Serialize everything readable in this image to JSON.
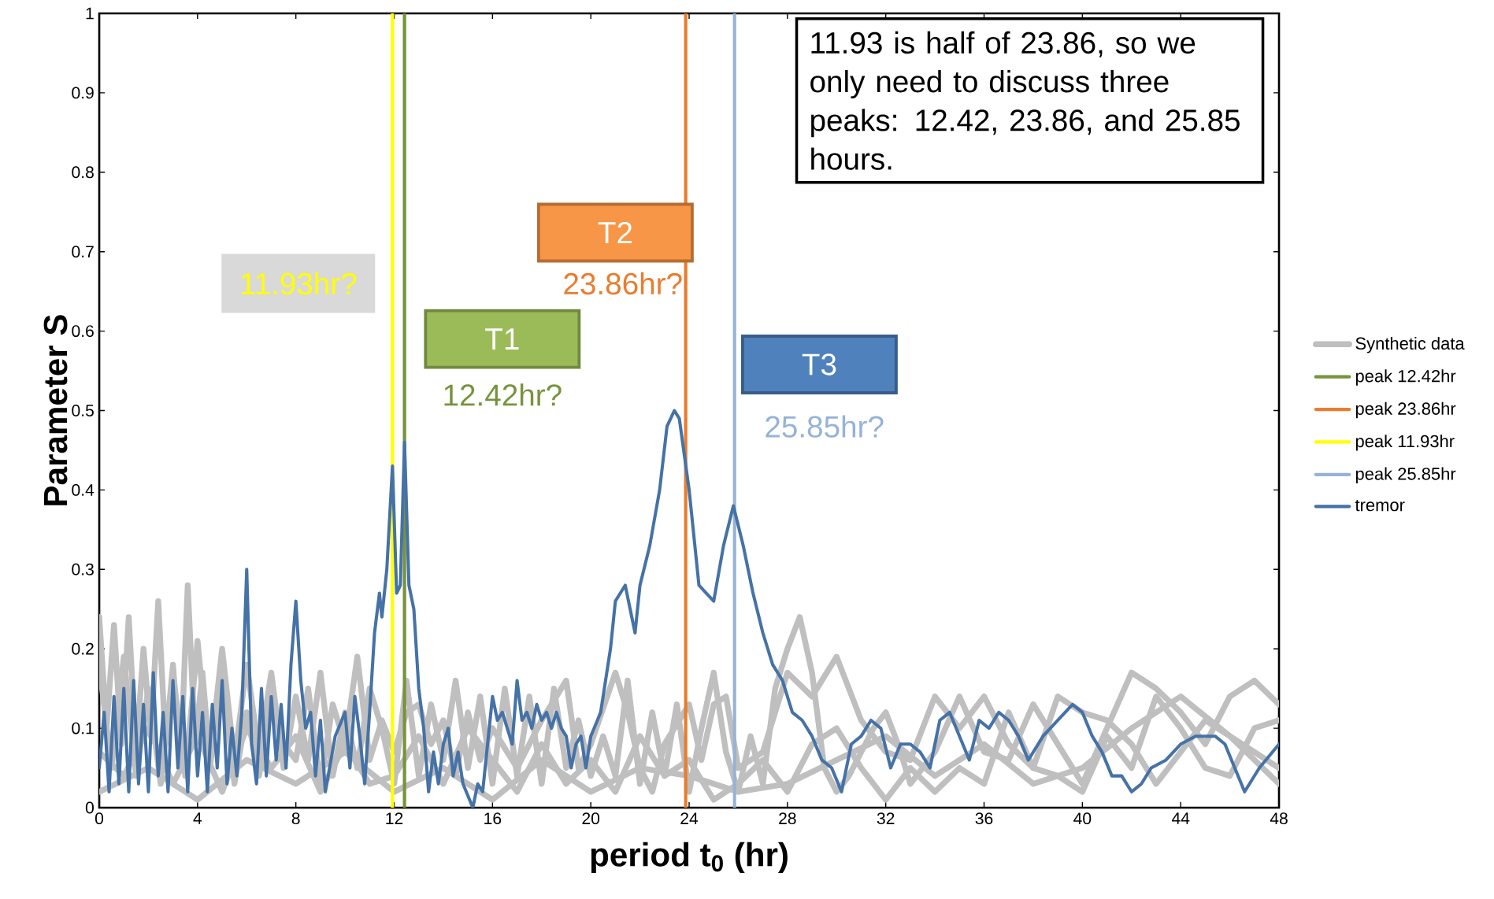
{
  "chart_data": {
    "type": "line",
    "xlabel": "period t$_{0}$ (hr)",
    "ylabel": "Parameter S",
    "xlim": [
      0,
      48
    ],
    "xticks": [
      0,
      4,
      8,
      12,
      16,
      20,
      24,
      28,
      32,
      36,
      40,
      44,
      48
    ],
    "ylim": [
      0,
      1
    ],
    "yticks": [
      0,
      0.1,
      0.2,
      0.3,
      0.4,
      0.5,
      0.6,
      0.7,
      0.8,
      0.9,
      1
    ],
    "legend": "right",
    "marker": "none",
    "line_style": "solid",
    "series": [
      {
        "name": "Synthetic data",
        "color": "#bfbfbf",
        "x": [
          0,
          0.3,
          0.6,
          0.9,
          1.2,
          1.5,
          1.8,
          2.1,
          2.4,
          2.7,
          3.0,
          3.3,
          3.6,
          3.9,
          4.2,
          4.5,
          5.0,
          5.5,
          6.0,
          6.5,
          7.0,
          7.5,
          8.0,
          8.5,
          9.0,
          9.5,
          10.0,
          10.5,
          11.0,
          11.5,
          12.0,
          12.5,
          13.0,
          13.5,
          14.0,
          14.5,
          15.0,
          15.5,
          16.0,
          16.5,
          17.0,
          17.5,
          18.0,
          18.5,
          19.0,
          19.5,
          20.0,
          20.5,
          21.0,
          21.5,
          22.0,
          22.5,
          23.0,
          23.5,
          24.0,
          24.5,
          25.0,
          25.5,
          26.0,
          26.5,
          27.0,
          27.5,
          28.0,
          28.5,
          29.0,
          29.5,
          30.0,
          30.5,
          31.0,
          31.5,
          32.0,
          32.5,
          33.0,
          34.0,
          35.0,
          36.0,
          37.0,
          38.0,
          39.0,
          40.0,
          41.0,
          42.0,
          43.0,
          44.0,
          45.0,
          46.0,
          47.0,
          48.0
        ],
        "values": [
          0.24,
          0.1,
          0.23,
          0.08,
          0.24,
          0.07,
          0.2,
          0.09,
          0.26,
          0.08,
          0.18,
          0.05,
          0.28,
          0.08,
          0.17,
          0.06,
          0.2,
          0.06,
          0.18,
          0.07,
          0.17,
          0.05,
          0.14,
          0.06,
          0.17,
          0.04,
          0.12,
          0.05,
          0.15,
          0.1,
          0.03,
          0.16,
          0.04,
          0.13,
          0.06,
          0.16,
          0.05,
          0.14,
          0.03,
          0.15,
          0.04,
          0.14,
          0.03,
          0.15,
          0.05,
          0.11,
          0.04,
          0.09,
          0.04,
          0.16,
          0.03,
          0.12,
          0.04,
          0.13,
          0.02,
          0.1,
          0.17,
          0.07,
          0.02,
          0.09,
          0.03,
          0.15,
          0.2,
          0.24,
          0.17,
          0.05,
          0.02,
          0.04,
          0.07,
          0.1,
          0.12,
          0.08,
          0.03,
          0.07,
          0.14,
          0.07,
          0.06,
          0.13,
          0.08,
          0.03,
          0.1,
          0.17,
          0.15,
          0.12,
          0.08,
          0.14,
          0.16,
          0.13
        ]
      },
      {
        "color": "#bfbfbf",
        "x": [
          0,
          0.5,
          1.0,
          1.5,
          2.0,
          2.5,
          3.0,
          3.5,
          4.0,
          4.5,
          5.0,
          5.5,
          6.0,
          6.5,
          7.0,
          7.5,
          8.0,
          8.5,
          9.0,
          9.5,
          10.0,
          10.5,
          11.0,
          11.5,
          12.0,
          12.5,
          13.0,
          13.5,
          14.0,
          14.5,
          15.0,
          15.5,
          16.0,
          17.0,
          18.0,
          19.0,
          19.5,
          20.0,
          21.0,
          21.5,
          22.0,
          22.5,
          23.0,
          24.0,
          24.5,
          25.0,
          25.5,
          26.0,
          27.0,
          28.0,
          29.0,
          30.0,
          31.0,
          32.0,
          33.0,
          34.0,
          35.0,
          36.0,
          37.0,
          38.0,
          39.0,
          40.0,
          41.0,
          42.0,
          43.0,
          44.0,
          45.0,
          46.0,
          47.0,
          48.0
        ],
        "values": [
          0.18,
          0.05,
          0.19,
          0.04,
          0.15,
          0.03,
          0.17,
          0.04,
          0.21,
          0.05,
          0.17,
          0.03,
          0.12,
          0.04,
          0.13,
          0.08,
          0.06,
          0.15,
          0.03,
          0.13,
          0.08,
          0.19,
          0.06,
          0.11,
          0.07,
          0.12,
          0.13,
          0.08,
          0.11,
          0.04,
          0.12,
          0.06,
          0.1,
          0.05,
          0.11,
          0.16,
          0.05,
          0.08,
          0.17,
          0.12,
          0.05,
          0.02,
          0.08,
          0.13,
          0.06,
          0.13,
          0.14,
          0.05,
          0.07,
          0.17,
          0.14,
          0.19,
          0.11,
          0.07,
          0.06,
          0.14,
          0.1,
          0.14,
          0.08,
          0.05,
          0.14,
          0.12,
          0.11,
          0.08,
          0.03,
          0.07,
          0.11,
          0.09,
          0.06,
          0.03
        ]
      },
      {
        "color": "#bfbfbf",
        "x": [
          0,
          1,
          2,
          3,
          4,
          5,
          6,
          7,
          8,
          9,
          10,
          11,
          12,
          13,
          14,
          15,
          16,
          17,
          18,
          19,
          20,
          21,
          22,
          23,
          24,
          25,
          26,
          27,
          28,
          29,
          30,
          31,
          32,
          33,
          34,
          35,
          36,
          37,
          38,
          39,
          40,
          41,
          42,
          43,
          44,
          45,
          46,
          47,
          48
        ],
        "values": [
          0.07,
          0.04,
          0.1,
          0.03,
          0.09,
          0.02,
          0.1,
          0.05,
          0.09,
          0.02,
          0.08,
          0.03,
          0.04,
          0.09,
          0.03,
          0.1,
          0.06,
          0.02,
          0.08,
          0.03,
          0.06,
          0.02,
          0.09,
          0.04,
          0.06,
          0.01,
          0.03,
          0.06,
          0.02,
          0.08,
          0.1,
          0.05,
          0.01,
          0.05,
          0.02,
          0.05,
          0.03,
          0.12,
          0.05,
          0.04,
          0.02,
          0.09,
          0.05,
          0.14,
          0.1,
          0.05,
          0.04,
          0.1,
          0.11
        ]
      },
      {
        "color": "#bfbfbf",
        "x": [
          0,
          2,
          4,
          6,
          8,
          10,
          12,
          14,
          16,
          18,
          20,
          22,
          24,
          26,
          28,
          30,
          32,
          34,
          36,
          38,
          40,
          42,
          44,
          46,
          48
        ],
        "values": [
          0.02,
          0.05,
          0.01,
          0.06,
          0.03,
          0.07,
          0.02,
          0.05,
          0.01,
          0.06,
          0.02,
          0.05,
          0.04,
          0.02,
          0.03,
          0.06,
          0.09,
          0.04,
          0.08,
          0.03,
          0.05,
          0.1,
          0.14,
          0.09,
          0.05
        ]
      },
      {
        "name": "peak 12.42hr",
        "color": "#77933c",
        "x": [
          12.42,
          12.42
        ],
        "values": [
          0,
          1
        ]
      },
      {
        "name": "peak 23.86hr",
        "color": "#e87d2f",
        "x": [
          23.86,
          23.86
        ],
        "values": [
          0,
          1
        ]
      },
      {
        "name": "peak 11.93hr",
        "color": "#ffff00",
        "x": [
          11.93,
          11.93
        ],
        "values": [
          0,
          1
        ]
      },
      {
        "name": "peak 25.85hr",
        "color": "#95b3d7",
        "x": [
          25.85,
          25.85
        ],
        "values": [
          0,
          1
        ]
      },
      {
        "name": "tremor",
        "color": "#4572a7",
        "x": [
          0,
          0.2,
          0.4,
          0.6,
          0.8,
          1.0,
          1.2,
          1.4,
          1.6,
          1.8,
          2.0,
          2.2,
          2.4,
          2.6,
          2.8,
          3.0,
          3.2,
          3.4,
          3.6,
          3.8,
          4.0,
          4.2,
          4.4,
          4.6,
          4.8,
          5.0,
          5.2,
          5.4,
          5.6,
          5.8,
          6.0,
          6.2,
          6.4,
          6.6,
          6.8,
          7.0,
          7.2,
          7.4,
          7.6,
          7.8,
          8.0,
          8.2,
          8.4,
          8.6,
          8.8,
          9.0,
          9.2,
          9.6,
          10.0,
          10.2,
          10.4,
          10.6,
          10.8,
          11.0,
          11.2,
          11.4,
          11.5,
          11.7,
          11.93,
          12.1,
          12.25,
          12.42,
          12.6,
          12.8,
          13.0,
          13.2,
          13.4,
          13.6,
          13.8,
          14.0,
          14.2,
          14.4,
          14.6,
          14.8,
          15.2,
          15.4,
          15.6,
          16.0,
          16.2,
          16.4,
          16.6,
          16.8,
          17.0,
          17.2,
          17.4,
          17.6,
          17.8,
          18.0,
          18.2,
          18.4,
          18.6,
          18.8,
          19.0,
          19.2,
          19.4,
          19.6,
          19.8,
          20.0,
          20.4,
          20.8,
          21.0,
          21.2,
          21.4,
          21.6,
          21.8,
          22.0,
          22.4,
          22.8,
          23.1,
          23.4,
          23.6,
          24.0,
          24.4,
          24.7,
          25.0,
          25.4,
          25.8,
          26.2,
          26.6,
          27.0,
          27.4,
          27.8,
          28.2,
          28.6,
          29.0,
          29.4,
          29.8,
          30.2,
          30.6,
          31.0,
          31.4,
          31.8,
          32.2,
          32.6,
          33.0,
          33.4,
          33.8,
          34.2,
          34.6,
          35.0,
          35.4,
          35.8,
          36.2,
          36.6,
          37.0,
          37.4,
          37.8,
          38.4,
          39.0,
          39.6,
          40.0,
          40.4,
          40.8,
          41.2,
          41.6,
          42.0,
          42.4,
          42.8,
          43.4,
          44.0,
          44.6,
          45.4,
          45.8,
          46.2,
          46.6,
          47.2,
          48.0
        ],
        "values": [
          0.05,
          0.12,
          0.02,
          0.14,
          0.03,
          0.15,
          0.02,
          0.16,
          0.03,
          0.13,
          0.02,
          0.17,
          0.04,
          0.12,
          0.02,
          0.16,
          0.05,
          0.14,
          0.02,
          0.15,
          0.04,
          0.12,
          0.02,
          0.13,
          0.05,
          0.16,
          0.03,
          0.1,
          0.04,
          0.12,
          0.3,
          0.08,
          0.03,
          0.15,
          0.04,
          0.14,
          0.06,
          0.13,
          0.05,
          0.18,
          0.26,
          0.16,
          0.1,
          0.12,
          0.04,
          0.11,
          0.02,
          0.09,
          0.12,
          0.05,
          0.14,
          0.09,
          0.03,
          0.12,
          0.22,
          0.27,
          0.24,
          0.3,
          0.43,
          0.27,
          0.28,
          0.46,
          0.28,
          0.25,
          0.15,
          0.1,
          0.02,
          0.07,
          0.03,
          0.08,
          0.1,
          0.04,
          0.07,
          0.03,
          0.0,
          0.03,
          0.02,
          0.14,
          0.11,
          0.12,
          0.1,
          0.08,
          0.16,
          0.11,
          0.12,
          0.1,
          0.13,
          0.11,
          0.12,
          0.1,
          0.12,
          0.1,
          0.09,
          0.05,
          0.08,
          0.09,
          0.05,
          0.09,
          0.12,
          0.2,
          0.26,
          0.27,
          0.28,
          0.25,
          0.22,
          0.28,
          0.33,
          0.4,
          0.48,
          0.5,
          0.49,
          0.4,
          0.28,
          0.27,
          0.26,
          0.33,
          0.38,
          0.33,
          0.27,
          0.22,
          0.18,
          0.16,
          0.12,
          0.11,
          0.09,
          0.06,
          0.05,
          0.02,
          0.08,
          0.09,
          0.11,
          0.1,
          0.05,
          0.08,
          0.08,
          0.07,
          0.05,
          0.11,
          0.12,
          0.09,
          0.06,
          0.11,
          0.1,
          0.12,
          0.11,
          0.09,
          0.06,
          0.09,
          0.11,
          0.13,
          0.12,
          0.09,
          0.07,
          0.04,
          0.04,
          0.02,
          0.03,
          0.05,
          0.06,
          0.08,
          0.09,
          0.09,
          0.08,
          0.05,
          0.02,
          0.05,
          0.08
        ]
      }
    ],
    "annotations": [
      "11.93 is half of 23.86, so we only need to discuss three peaks: 12.42, 23.86, and 25.85 hours.",
      "T1",
      "12.42hr?",
      "T2",
      "23.86hr?",
      "T3",
      "25.85hr?",
      "11.93hr?"
    ]
  }
}
